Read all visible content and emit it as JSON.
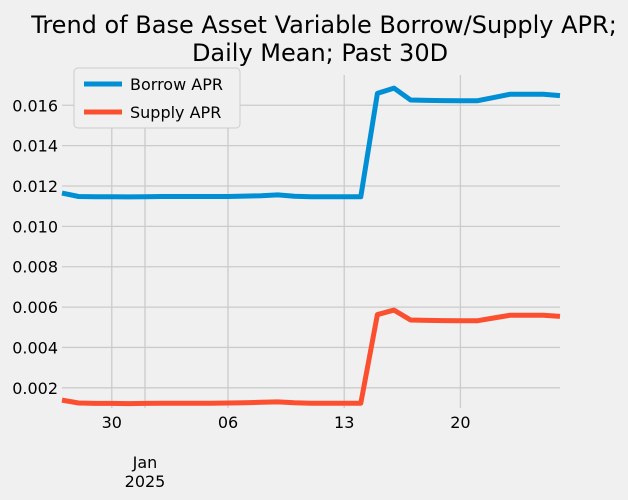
{
  "chart_data": {
    "type": "line",
    "title": [
      "Trend of Base Asset Variable Borrow/Supply APR;",
      "Daily Mean; Past 30D"
    ],
    "xlabel": "",
    "ylabel": "",
    "x_start": "2024-12-27",
    "xlim": [
      "2024-12-27",
      "2025-01-26"
    ],
    "ylim": [
      0.001,
      0.0175
    ],
    "y_ticks": [
      "0.002",
      "0.004",
      "0.006",
      "0.008",
      "0.010",
      "0.012",
      "0.014",
      "0.016"
    ],
    "x_ticks": [
      {
        "date": "2024-12-30",
        "label": "30"
      },
      {
        "date": "2025-01-01",
        "label": "Jan",
        "label2": "2025"
      },
      {
        "date": "2025-01-06",
        "label": "06"
      },
      {
        "date": "2025-01-13",
        "label": "13"
      },
      {
        "date": "2025-01-20",
        "label": "20"
      }
    ],
    "grid": true,
    "legend_position": "top-left",
    "series": [
      {
        "name": "Borrow APR",
        "color": "#008fd5",
        "values": [
          0.01165,
          0.01148,
          0.01147,
          0.01147,
          0.01146,
          0.01147,
          0.01148,
          0.01148,
          0.01148,
          0.01148,
          0.01148,
          0.0115,
          0.01152,
          0.01156,
          0.01149,
          0.01147,
          0.01147,
          0.01147,
          0.01147,
          0.01659,
          0.01685,
          0.01626,
          0.01624,
          0.01623,
          0.01622,
          0.01622,
          0.01638,
          0.01655,
          0.01655,
          0.01655,
          0.01648
        ]
      },
      {
        "name": "Supply APR",
        "color": "#fc4f30",
        "values": [
          0.00139,
          0.00125,
          0.00123,
          0.00123,
          0.00122,
          0.00123,
          0.00124,
          0.00124,
          0.00124,
          0.00124,
          0.00125,
          0.00126,
          0.00128,
          0.0013,
          0.00126,
          0.00124,
          0.00124,
          0.00124,
          0.00124,
          0.00563,
          0.00585,
          0.00536,
          0.00534,
          0.00533,
          0.00532,
          0.00532,
          0.00546,
          0.0056,
          0.0056,
          0.0056,
          0.00554
        ]
      }
    ]
  }
}
